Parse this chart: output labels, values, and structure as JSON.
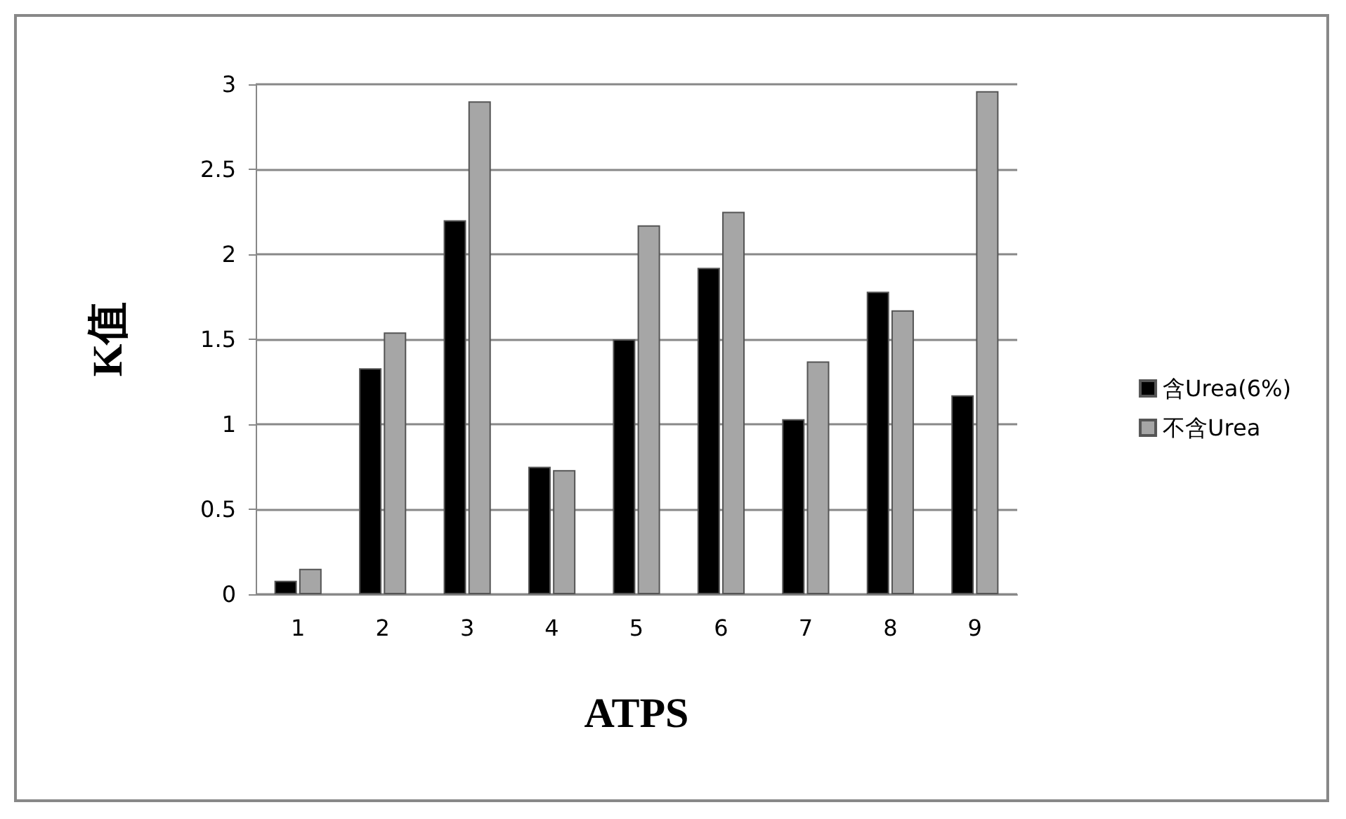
{
  "chart_data": {
    "type": "bar",
    "xlabel": "ATPS",
    "ylabel": "K值",
    "categories": [
      "1",
      "2",
      "3",
      "4",
      "5",
      "6",
      "7",
      "8",
      "9"
    ],
    "series": [
      {
        "name": "含Urea(6%)",
        "color": "#000000",
        "values": [
          0.08,
          1.33,
          2.2,
          0.75,
          1.5,
          1.92,
          1.03,
          1.78,
          1.17
        ]
      },
      {
        "name": "不含Urea",
        "color": "#a6a6a6",
        "values": [
          0.15,
          1.54,
          2.9,
          0.73,
          2.17,
          2.25,
          1.37,
          1.67,
          2.96
        ]
      }
    ],
    "ylim": [
      0,
      3
    ],
    "yticks": [
      0,
      0.5,
      1,
      1.5,
      2,
      2.5,
      3
    ],
    "grid": "y",
    "legend": "right"
  }
}
